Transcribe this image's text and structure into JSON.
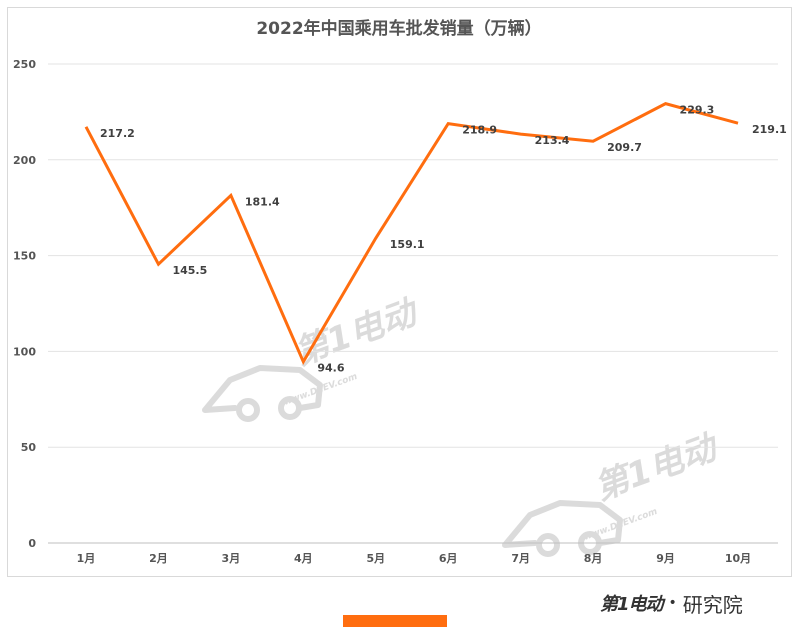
{
  "chart_data": {
    "type": "line",
    "title": "2022年中国乘用车批发销量（万辆）",
    "categories": [
      "1月",
      "2月",
      "3月",
      "4月",
      "5月",
      "6月",
      "7月",
      "8月",
      "9月",
      "10月"
    ],
    "values": [
      217.2,
      145.5,
      181.4,
      94.6,
      159.1,
      218.9,
      213.4,
      209.7,
      229.3,
      219.1
    ],
    "data_labels": [
      "217.2",
      "145.5",
      "181.4",
      "94.6",
      "159.1",
      "218.9",
      "213.4",
      "209.7",
      "229.3",
      "219.1"
    ],
    "ylim": [
      0,
      250
    ],
    "yticks": [
      "0",
      "50",
      "100",
      "150",
      "200",
      "250"
    ],
    "grid": true,
    "legend": "none",
    "line_color": "#ff6d0f"
  },
  "watermark": {
    "brand_text": "第1电动",
    "url_text": "www.D1EV.com"
  },
  "footer": {
    "brand_text": "第1电动",
    "separator": "•",
    "lab_text": "研究院",
    "bar_color": "#ff6d0f"
  }
}
